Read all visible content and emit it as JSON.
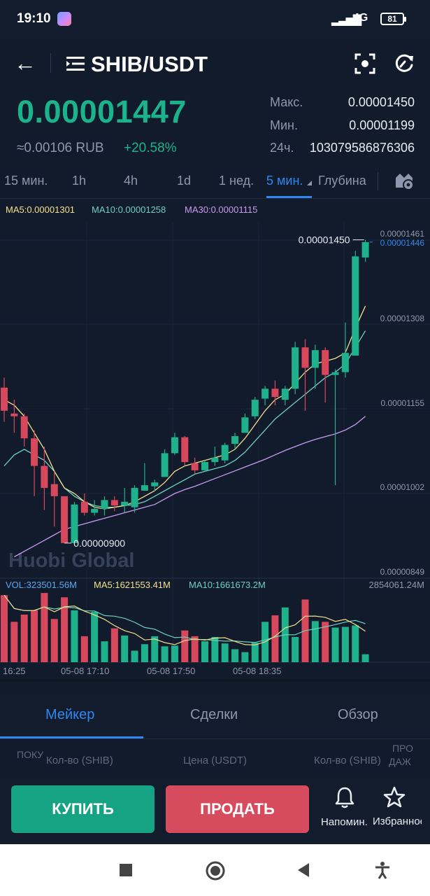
{
  "status_bar": {
    "time": "19:10",
    "network": "4G",
    "battery": "81"
  },
  "header": {
    "pair": "SHIB/USDT",
    "icons": [
      "back-arrow-icon",
      "menu-icon",
      "scan-icon",
      "refresh-icon"
    ]
  },
  "price": {
    "last": "0.00001447",
    "fiat": "≈0.00106 RUB",
    "change": "+20.58%",
    "stats": [
      {
        "label": "Макс.",
        "value": "0.00001450"
      },
      {
        "label": "Мин.",
        "value": "0.00001199"
      },
      {
        "label": "24ч.",
        "value": "103079586876306"
      }
    ]
  },
  "time_tabs": [
    {
      "label": "15 мин.",
      "active": false
    },
    {
      "label": "1h",
      "active": false
    },
    {
      "label": "4h",
      "active": false
    },
    {
      "label": "1d",
      "active": false
    },
    {
      "label": "1 нед.",
      "active": false
    },
    {
      "label": "5 мин.",
      "active": true
    },
    {
      "label": "Глубина",
      "active": false
    }
  ],
  "ma_legend": {
    "ma5": "MA5:0.00001301",
    "ma10": "MA10:0.00001258",
    "ma30": "MA30:0.00001115"
  },
  "vol_legend": {
    "vol": "VOL:323501.56M",
    "ma5": "MA5:1621553.41M",
    "ma10": "MA10:1661673.2M",
    "max": "2854061.24M"
  },
  "watermark": "Huobi Global",
  "chart_data": {
    "type": "candlestick",
    "y_ticks": [
      "0.00001461",
      "0.00001308",
      "0.00001155",
      "0.00001002",
      "0.00000849"
    ],
    "y_range": [
      8.49e-06,
      1.461e-05
    ],
    "current_price_tag": "0.00001446",
    "high_annotation": "0.00001450",
    "low_annotation": "0.00000900",
    "x_ticks": [
      "16:25",
      "05-08 17:10",
      "05-08 17:50",
      "05-08 18:35"
    ],
    "colors": {
      "up": "#1fb08c",
      "down": "#d8485c",
      "ma5": "#f2e08c",
      "ma10": "#6fd0c0",
      "ma30": "#c99cf2"
    },
    "candles": [
      {
        "o": 1.182,
        "h": 1.2,
        "c": 1.14,
        "l": 1.12
      },
      {
        "o": 1.135,
        "h": 1.16,
        "c": 1.13,
        "l": 1.1
      },
      {
        "o": 1.13,
        "h": 1.135,
        "c": 1.09,
        "l": 1.075
      },
      {
        "o": 1.09,
        "h": 1.105,
        "c": 1.04,
        "l": 0.985
      },
      {
        "o": 1.04,
        "h": 1.075,
        "c": 1.0,
        "l": 0.96
      },
      {
        "o": 1.007,
        "h": 1.03,
        "c": 0.985,
        "l": 0.93
      },
      {
        "o": 0.985,
        "h": 0.985,
        "c": 0.9,
        "l": 0.9
      },
      {
        "o": 0.9,
        "h": 0.975,
        "c": 0.97,
        "l": 0.9
      },
      {
        "o": 0.975,
        "h": 0.99,
        "c": 0.955,
        "l": 0.95
      },
      {
        "o": 0.955,
        "h": 0.978,
        "c": 0.962,
        "l": 0.95
      },
      {
        "o": 0.962,
        "h": 0.985,
        "c": 0.978,
        "l": 0.95
      },
      {
        "o": 0.978,
        "h": 0.985,
        "c": 0.968,
        "l": 0.958
      },
      {
        "o": 0.968,
        "h": 1.0,
        "c": 0.975,
        "l": 0.955
      },
      {
        "o": 0.965,
        "h": 1.005,
        "c": 1.0,
        "l": 0.955
      },
      {
        "o": 0.995,
        "h": 1.045,
        "c": 1.005,
        "l": 0.995
      },
      {
        "o": 1.003,
        "h": 1.015,
        "c": 1.01,
        "l": 0.995
      },
      {
        "o": 1.02,
        "h": 1.07,
        "c": 1.063,
        "l": 1.02
      },
      {
        "o": 1.063,
        "h": 1.1,
        "c": 1.092,
        "l": 1.06
      },
      {
        "o": 1.092,
        "h": 1.094,
        "c": 1.047,
        "l": 1.04
      },
      {
        "o": 1.045,
        "h": 1.055,
        "c": 1.032,
        "l": 1.025
      },
      {
        "o": 1.032,
        "h": 1.05,
        "c": 1.047,
        "l": 1.03
      },
      {
        "o": 1.047,
        "h": 1.075,
        "c": 1.055,
        "l": 1.04
      },
      {
        "o": 1.05,
        "h": 1.082,
        "c": 1.078,
        "l": 1.045
      },
      {
        "o": 1.08,
        "h": 1.1,
        "c": 1.094,
        "l": 1.07
      },
      {
        "o": 1.1,
        "h": 1.135,
        "c": 1.128,
        "l": 1.1
      },
      {
        "o": 1.13,
        "h": 1.165,
        "c": 1.16,
        "l": 1.125
      },
      {
        "o": 1.162,
        "h": 1.185,
        "c": 1.18,
        "l": 1.15
      },
      {
        "o": 1.18,
        "h": 1.195,
        "c": 1.165,
        "l": 1.15
      },
      {
        "o": 1.16,
        "h": 1.185,
        "c": 1.18,
        "l": 1.15
      },
      {
        "o": 1.18,
        "h": 1.265,
        "c": 1.255,
        "l": 1.17
      },
      {
        "o": 1.255,
        "h": 1.27,
        "c": 1.218,
        "l": 1.14
      },
      {
        "o": 1.218,
        "h": 1.26,
        "c": 1.25,
        "l": 1.18
      },
      {
        "o": 1.25,
        "h": 1.255,
        "c": 1.205,
        "l": 1.155
      },
      {
        "o": 1.205,
        "h": 1.215,
        "c": 1.21,
        "l": 1.005
      },
      {
        "o": 1.21,
        "h": 1.3,
        "c": 1.245,
        "l": 1.2
      },
      {
        "o": 1.24,
        "h": 1.43,
        "c": 1.42,
        "l": 1.24
      },
      {
        "o": 1.418,
        "h": 1.45,
        "c": 1.446,
        "l": 1.41
      }
    ],
    "ma5": [
      1.16,
      1.15,
      1.13,
      1.1,
      1.07,
      1.03,
      1.0,
      0.99,
      0.975,
      0.965,
      0.962,
      0.965,
      0.968,
      0.975,
      0.985,
      0.995,
      1.01,
      1.03,
      1.04,
      1.045,
      1.05,
      1.055,
      1.06,
      1.07,
      1.09,
      1.115,
      1.14,
      1.16,
      1.17,
      1.19,
      1.21,
      1.225,
      1.23,
      1.235,
      1.245,
      1.29,
      1.33
    ],
    "ma10": [
      1.04,
      1.06,
      1.07,
      1.06,
      1.05,
      1.03,
      1.0,
      0.985,
      0.975,
      0.968,
      0.965,
      0.965,
      0.968,
      0.97,
      0.975,
      0.985,
      0.995,
      1.005,
      1.015,
      1.025,
      1.03,
      1.035,
      1.04,
      1.05,
      1.065,
      1.085,
      1.105,
      1.125,
      1.14,
      1.155,
      1.17,
      1.185,
      1.2,
      1.21,
      1.225,
      1.255,
      1.285
    ],
    "ma30": [
      null,
      0.875,
      0.885,
      0.895,
      0.905,
      0.915,
      0.925,
      0.93,
      0.935,
      0.94,
      0.945,
      0.95,
      0.955,
      0.96,
      0.965,
      0.97,
      0.98,
      0.99,
      0.997,
      1.003,
      1.01,
      1.017,
      1.024,
      1.031,
      1.038,
      1.045,
      1.052,
      1.06,
      1.068,
      1.075,
      1.082,
      1.088,
      1.093,
      1.098,
      1.105,
      1.115,
      1.13
    ],
    "volumes": [
      0.93,
      0.56,
      0.66,
      0.72,
      0.96,
      0.6,
      0.9,
      0.72,
      0.36,
      0.7,
      0.29,
      0.47,
      0.37,
      0.16,
      0.25,
      0.36,
      0.22,
      0.23,
      0.44,
      0.36,
      0.29,
      0.35,
      0.26,
      0.18,
      0.14,
      0.27,
      0.56,
      0.65,
      0.76,
      0.35,
      0.87,
      0.57,
      0.56,
      0.48,
      0.49,
      0.51,
      0.11
    ]
  },
  "lower_tabs": [
    {
      "label": "Мейкер",
      "active": true
    },
    {
      "label": "Сделки",
      "active": false
    },
    {
      "label": "Обзор",
      "active": false
    }
  ],
  "orderbook_columns": {
    "buy": "ПОКУ",
    "qty_left": "Кол-во (SHIB)",
    "price": "Цена (USDT)",
    "qty_right": "Кол-во (SHIB)",
    "sell_top": "ПРО",
    "sell_bottom": "ДАЖ"
  },
  "actions": {
    "buy": "КУПИТЬ",
    "sell": "ПРОДАТЬ",
    "alert": "Напомин.",
    "favorite": "Избранное"
  }
}
